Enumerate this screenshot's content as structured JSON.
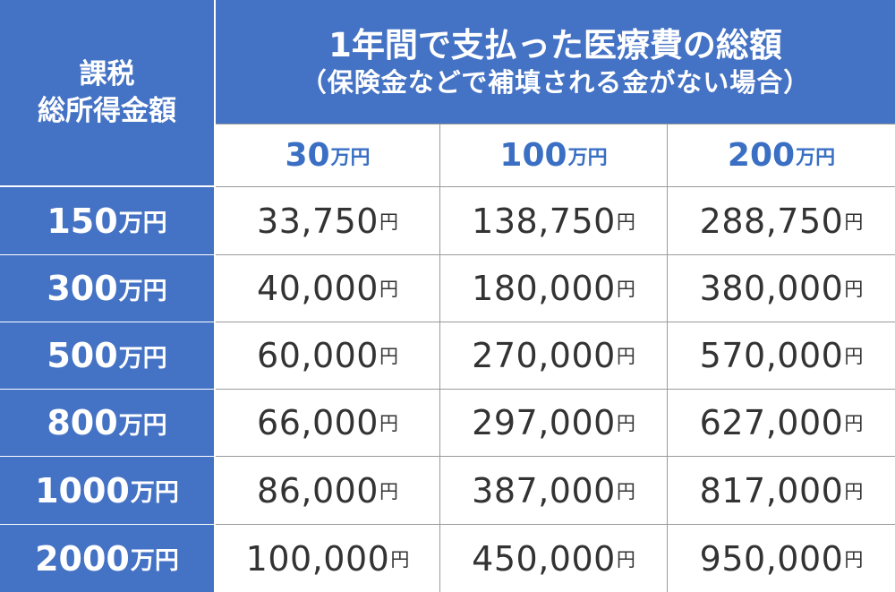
{
  "chart_data": {
    "type": "table",
    "corner_header": [
      "課税",
      "総所得金額"
    ],
    "title": "1年間で支払った医療費の総額",
    "subtitle": "（保険金などで補填される金がない場合）",
    "unit": "円",
    "columns": [
      {
        "num": "30",
        "unit": "万円"
      },
      {
        "num": "100",
        "unit": "万円"
      },
      {
        "num": "200",
        "unit": "万円"
      }
    ],
    "rows": [
      {
        "head": {
          "num": "150",
          "unit": "万円"
        },
        "values": [
          "33,750",
          "138,750",
          "288,750"
        ]
      },
      {
        "head": {
          "num": "300",
          "unit": "万円"
        },
        "values": [
          "40,000",
          "180,000",
          "380,000"
        ]
      },
      {
        "head": {
          "num": "500",
          "unit": "万円"
        },
        "values": [
          "60,000",
          "270,000",
          "570,000"
        ]
      },
      {
        "head": {
          "num": "800",
          "unit": "万円"
        },
        "values": [
          "66,000",
          "297,000",
          "627,000"
        ]
      },
      {
        "head": {
          "num": "1000",
          "unit": "万円"
        },
        "values": [
          "86,000",
          "387,000",
          "817,000"
        ]
      },
      {
        "head": {
          "num": "2000",
          "unit": "万円"
        },
        "values": [
          "100,000",
          "450,000",
          "950,000"
        ]
      }
    ],
    "colors": {
      "header_bg": "#4472c4",
      "header_text": "#ffffff",
      "column_head_text": "#3a6fc4",
      "value_text": "#333333",
      "grid": "#9a9a9a"
    }
  }
}
